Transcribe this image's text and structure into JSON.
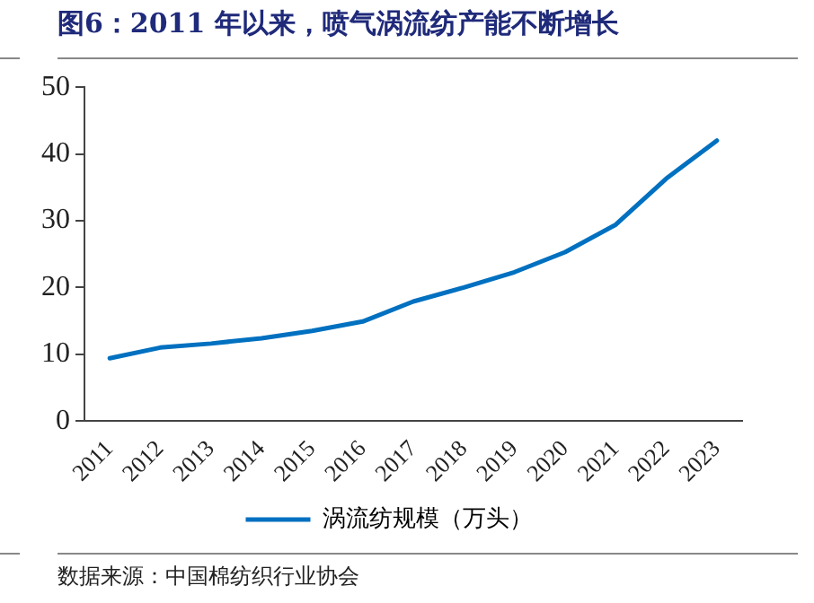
{
  "chart_data": {
    "type": "line",
    "title": "图6：2011 年以来，喷气涡流纺产能不断增长",
    "categories": [
      "2011",
      "2012",
      "2013",
      "2014",
      "2015",
      "2016",
      "2017",
      "2018",
      "2019",
      "2020",
      "2021",
      "2022",
      "2023"
    ],
    "series": [
      {
        "name": "涡流纺规模（万头）",
        "color": "#0070c0",
        "values": [
          9.4,
          11.0,
          11.6,
          12.4,
          13.5,
          14.9,
          17.9,
          20.0,
          22.3,
          25.3,
          29.4,
          36.3,
          42.0
        ]
      }
    ],
    "ylim": [
      0,
      50
    ],
    "yticks": [
      0,
      10,
      20,
      30,
      40,
      50
    ],
    "grid": false,
    "legend": "bottom",
    "marker": "none",
    "line_style": "solid",
    "annotations": [
      "数据来源：中国棉纺织行业协会"
    ]
  }
}
